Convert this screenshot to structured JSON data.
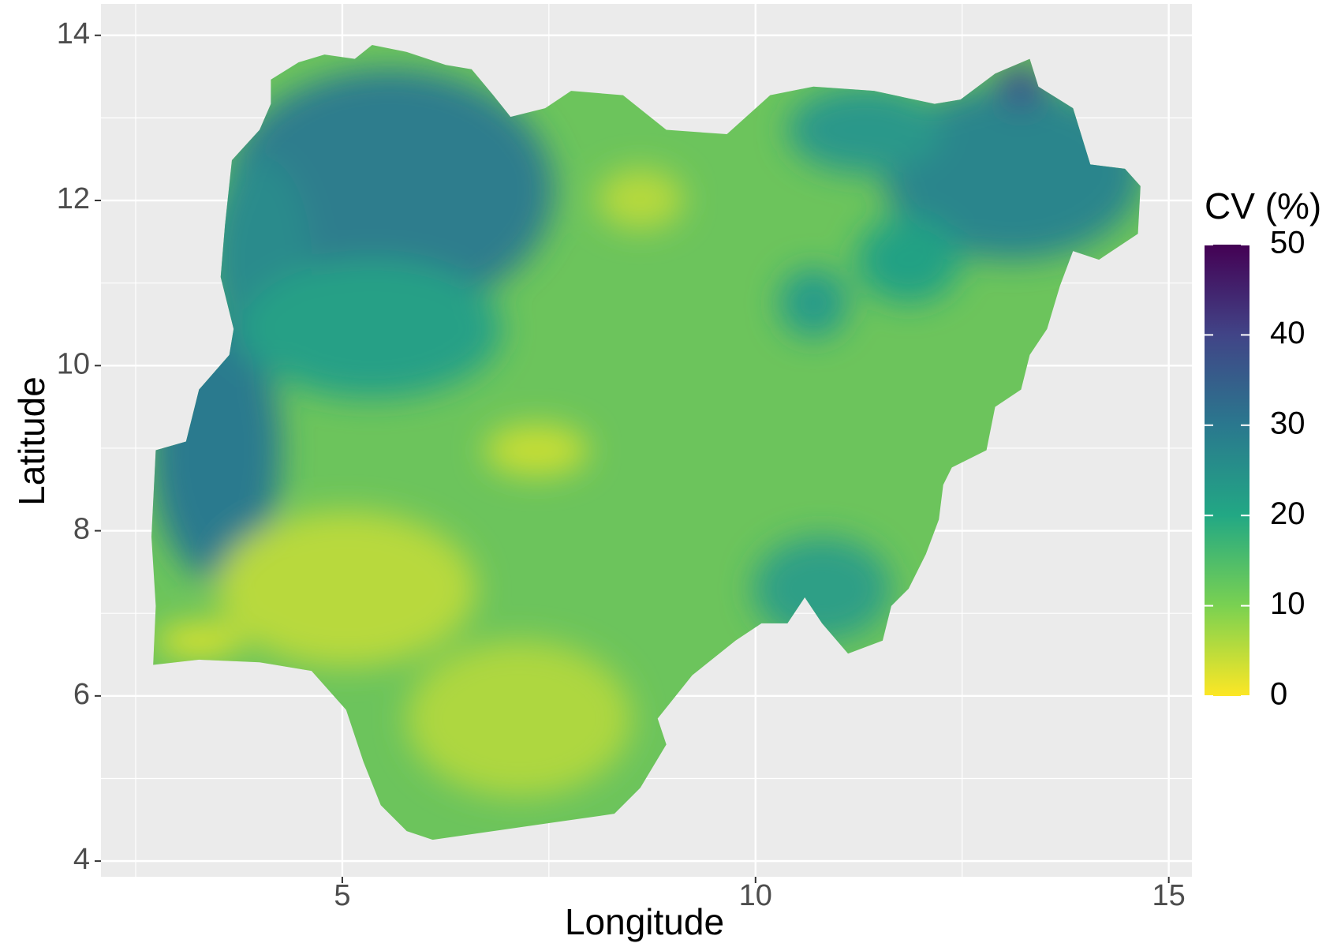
{
  "chart_data": {
    "type": "map",
    "xlabel": "Longitude",
    "ylabel": "Latitude",
    "xlim": [
      2.08,
      15.28
    ],
    "ylim": [
      3.81,
      14.38
    ],
    "xticks": [
      5,
      10,
      15
    ],
    "yticks": [
      4,
      6,
      8,
      10,
      12,
      14
    ],
    "grid": true,
    "colorbar": {
      "title": "CV (%)",
      "lim": [
        0,
        50
      ],
      "ticks": [
        0,
        10,
        20,
        30,
        40,
        50
      ],
      "colors": [
        "#fde725",
        "#7ad151",
        "#22a884",
        "#2a788e",
        "#414487",
        "#440154"
      ]
    }
  }
}
